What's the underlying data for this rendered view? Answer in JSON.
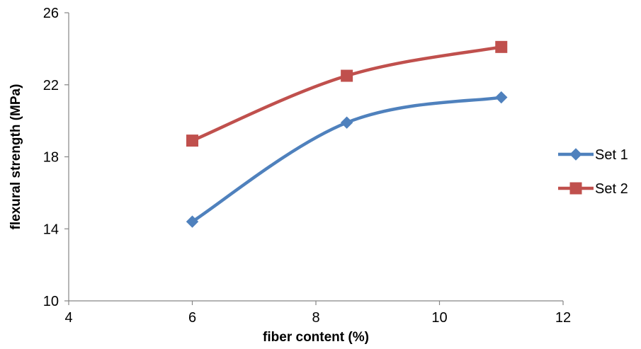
{
  "chart_data": {
    "type": "line",
    "title": "",
    "xlabel": "fiber content (%)",
    "ylabel": "flexural  strength (MPa)",
    "xlim": [
      4,
      12
    ],
    "ylim": [
      10,
      26
    ],
    "xticks": [
      4,
      6,
      8,
      10,
      12
    ],
    "yticks": [
      10,
      14,
      18,
      22,
      26
    ],
    "grid": false,
    "smooth": true,
    "legend_position": "right",
    "series": [
      {
        "name": "Set 1",
        "color": "#4F81BD",
        "marker": "diamond",
        "x": [
          6,
          8.5,
          11
        ],
        "y": [
          14.4,
          19.9,
          21.3
        ]
      },
      {
        "name": "Set 2",
        "color": "#C0504D",
        "marker": "square",
        "x": [
          6,
          8.5,
          11
        ],
        "y": [
          18.9,
          22.5,
          24.1
        ]
      }
    ]
  }
}
